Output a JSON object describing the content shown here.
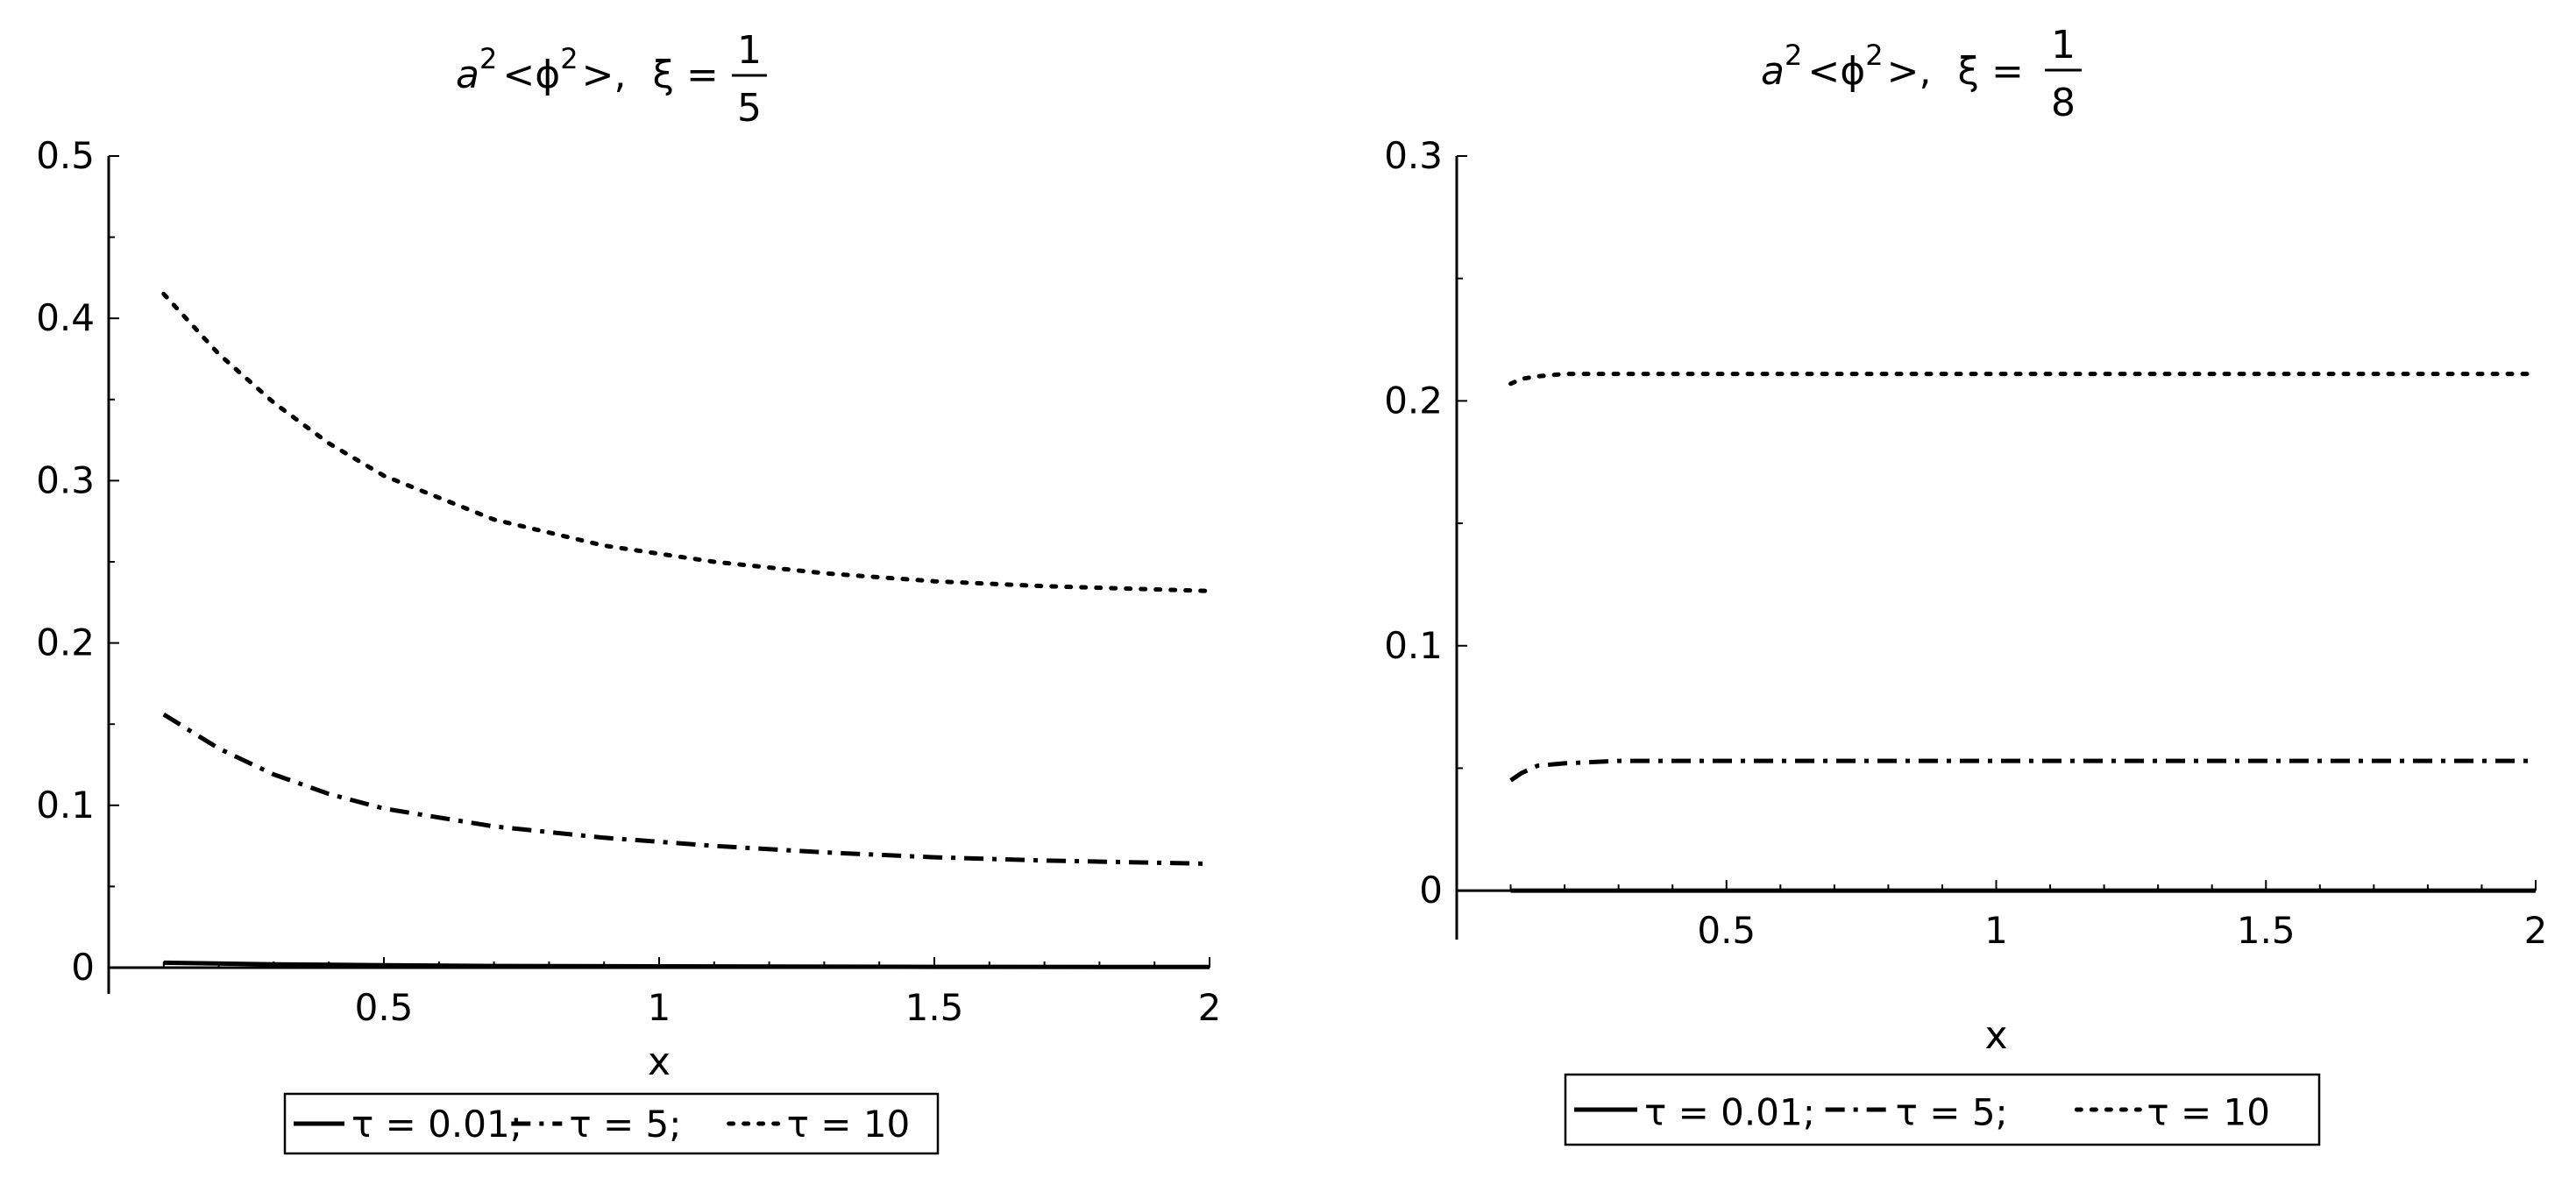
{
  "chart_data": [
    {
      "type": "line",
      "title": {
        "prefix": "a",
        "sup1": "2",
        "bracket_open": "<",
        "phi": "ϕ",
        "sup2": "2",
        "bracket_close": ">,",
        "xi_label": "ξ =",
        "frac_num": "1",
        "frac_den": "5"
      },
      "xlabel": "x",
      "ylabel": "",
      "xlim": [
        0,
        2
      ],
      "ylim": [
        0,
        0.5
      ],
      "x_ticks": [
        "0.5",
        "1",
        "1.5",
        "2"
      ],
      "y_ticks": [
        "0",
        "0.1",
        "0.2",
        "0.3",
        "0.4",
        "0.5"
      ],
      "grid": false,
      "legend_position": "bottom",
      "series": [
        {
          "name": "τ = 0.01;",
          "style": "solid",
          "x": [
            0.1,
            0.3,
            0.5,
            0.7,
            1.0,
            1.5,
            2.0
          ],
          "y": [
            0.003,
            0.002,
            0.0015,
            0.001,
            0.0008,
            0.0005,
            0.0004
          ]
        },
        {
          "name": "τ = 5;",
          "style": "dashdot",
          "x": [
            0.1,
            0.2,
            0.3,
            0.4,
            0.5,
            0.7,
            0.9,
            1.1,
            1.3,
            1.5,
            1.7,
            2.0
          ],
          "y": [
            0.156,
            0.135,
            0.119,
            0.107,
            0.098,
            0.087,
            0.08,
            0.075,
            0.071,
            0.068,
            0.066,
            0.064
          ]
        },
        {
          "name": "τ = 10",
          "style": "dotted",
          "x": [
            0.1,
            0.2,
            0.3,
            0.4,
            0.5,
            0.7,
            0.9,
            1.1,
            1.3,
            1.5,
            1.7,
            2.0
          ],
          "y": [
            0.415,
            0.378,
            0.348,
            0.323,
            0.303,
            0.276,
            0.26,
            0.25,
            0.243,
            0.238,
            0.235,
            0.232
          ]
        }
      ]
    },
    {
      "type": "line",
      "title": {
        "prefix": "a",
        "sup1": "2",
        "bracket_open": "<",
        "phi": "ϕ",
        "sup2": "2",
        "bracket_close": ">,",
        "xi_label": "ξ =",
        "frac_num": "1",
        "frac_den": "8"
      },
      "xlabel": "x",
      "ylabel": "",
      "xlim": [
        0,
        2
      ],
      "ylim": [
        -0.02,
        0.3
      ],
      "x_ticks": [
        "0.5",
        "1",
        "1.5",
        "2"
      ],
      "y_ticks": [
        "0",
        "0.1",
        "0.2",
        "0.3"
      ],
      "grid": false,
      "legend_position": "bottom",
      "series": [
        {
          "name": "τ = 0.01;",
          "style": "solid",
          "x": [
            0.1,
            0.5,
            1.0,
            1.5,
            2.0
          ],
          "y": [
            0.0,
            0.0,
            0.0,
            0.0,
            0.0
          ]
        },
        {
          "name": "τ = 5;",
          "style": "dashdot",
          "x": [
            0.1,
            0.12,
            0.15,
            0.2,
            0.3,
            0.5,
            1.0,
            1.5,
            2.0
          ],
          "y": [
            0.045,
            0.048,
            0.051,
            0.052,
            0.053,
            0.053,
            0.053,
            0.053,
            0.053
          ]
        },
        {
          "name": "τ = 10",
          "style": "dotted",
          "x": [
            0.1,
            0.12,
            0.15,
            0.2,
            0.3,
            0.5,
            1.0,
            1.5,
            2.0
          ],
          "y": [
            0.207,
            0.209,
            0.21,
            0.211,
            0.211,
            0.211,
            0.211,
            0.211,
            0.211
          ]
        }
      ]
    }
  ]
}
